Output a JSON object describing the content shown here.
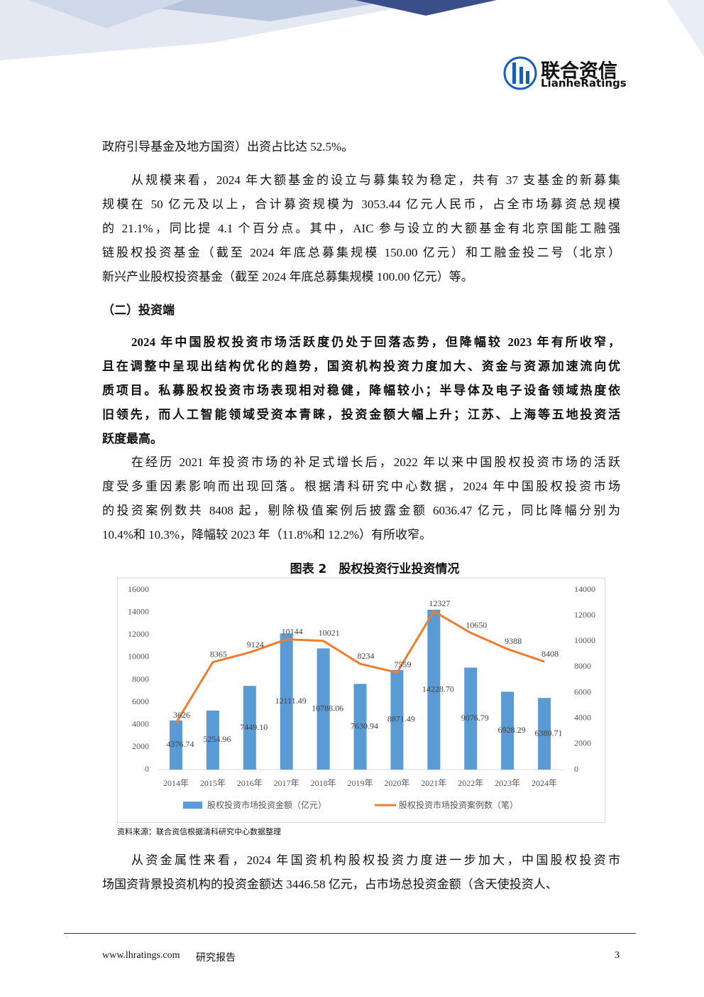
{
  "header": {
    "logo_cn": "联合资信",
    "logo_en": "LianheRatings"
  },
  "para1": [
    "政府引导基金及地方国资）出资占比达 52.5%。"
  ],
  "para2": [
    "从规模来看，2024 年大额基金的设立与募集较为稳定，共有 37 支基金的新募集",
    "规模在 50 亿元及以上，合计募资规模为 3053.44 亿元人民币，占全市场募资总规模",
    "的 21.1%，同比提 4.1 个百分点。其中，AIC 参与设立的大额基金有北京国能工融强",
    "链股权投资基金（截至 2024 年底总募集规模 150.00 亿元）和工融金投二号（北京）",
    "新兴产业股权投资基金（截至 2024 年底总募集规模 100.00 亿元）等。"
  ],
  "heading": "（二）投资端",
  "para3": [
    "2024 年中国股权投资市场活跃度仍处于回落态势，但降幅较 2023 年有所收窄，",
    "且在调整中呈现出结构优化的趋势，国资机构投资力度加大、资金与资源加速流向优",
    "质项目。私募股权投资市场表现相对稳健，降幅较小；半导体及电子设备领域热度依",
    "旧领先，而人工智能领域受资本青睐，投资金额大幅上升；江苏、上海等五地投资活",
    "跃度最高。"
  ],
  "para4": [
    "在经历 2021 年投资市场的补足式增长后，2022 年以来中国股权投资市场的活跃",
    "度受多重因素影响而出现回落。根据清科研究中心数据，2024 年中国股权投资市场",
    "的投资案例数共 8408 起，剔除极值案例后披露金额 6036.47 亿元，同比降幅分别为",
    "10.4%和 10.3%，降幅较 2023 年（11.8%和 12.2%）有所收窄。"
  ],
  "caption": "图表 2　股权投资行业投资情况",
  "chart_data": {
    "type": "bar",
    "categories": [
      "2014年",
      "2015年",
      "2016年",
      "2017年",
      "2018年",
      "2019年",
      "2020年",
      "2021年",
      "2022年",
      "2023年",
      "2024年"
    ],
    "series": [
      {
        "name": "股权投资市场投资金额（亿元）",
        "type": "bar",
        "color": "#5b9bd5",
        "values": [
          4376.74,
          5254.96,
          7449.1,
          12111.49,
          10788.06,
          7630.94,
          8871.49,
          14228.7,
          9076.79,
          6928.29,
          6380.71
        ],
        "value_labels": [
          "4376.74",
          "5254.96",
          "7449.10",
          "12111.49",
          "10788.06",
          "7630.94",
          "8871.49",
          "14228.70",
          "9076.79",
          "6928.29",
          "6380.71"
        ]
      },
      {
        "name": "股权投资市场投资案例数（笔）",
        "type": "line",
        "axis": "y2",
        "color": "#ed7d31",
        "values": [
          3626,
          8365,
          9124,
          10144,
          10021,
          8234,
          7559,
          12327,
          10650,
          9388,
          8408
        ]
      }
    ],
    "ylim": [
      0,
      16000
    ],
    "yticks": [
      0,
      2000,
      4000,
      6000,
      8000,
      10000,
      12000,
      14000,
      16000
    ],
    "y2lim": [
      0,
      14000
    ],
    "y2ticks": [
      0,
      2000,
      4000,
      6000,
      8000,
      10000,
      12000,
      14000
    ]
  },
  "source": "资料来源：联合资信根据清科研究中心数据整理",
  "para5": [
    "从资金属性来看，2024 年国资机构股权投资力度进一步加大，中国股权投资市",
    "场国资背景投资机构的投资金额达 3446.58 亿元，占市场总投资金额（含天使投资人、"
  ],
  "footer": {
    "site": "www.lhratings.com",
    "label": "研究报告",
    "page": "3"
  }
}
